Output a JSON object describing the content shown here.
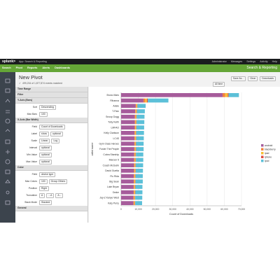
{
  "header": {
    "logo": "splunk>",
    "app": "App: Search & Reporting",
    "menu": [
      "Administrator",
      "Messages",
      "Settings",
      "Activity",
      "Help"
    ]
  },
  "nav": {
    "items": [
      "Search",
      "Pivot",
      "Reports",
      "Alerts",
      "Dashboards"
    ],
    "app_title": "Search & Reporting"
  },
  "pivot": {
    "title": "New Pivot",
    "status": "499,234 of 1,877,874 events matched",
    "buttons": [
      "Save As...",
      "Clear",
      "Downloads"
    ],
    "time": "All time"
  },
  "panel": {
    "sections": [
      {
        "title": "Time Range",
        "rows": []
      },
      {
        "title": "Filter",
        "rows": []
      },
      {
        "title": "Y-Axis (Bars)",
        "rows": [
          {
            "label": "Sort",
            "controls": [
              "Descending"
            ]
          },
          {
            "label": "Max Bars",
            "controls": [
              "100"
            ]
          }
        ]
      },
      {
        "title": "X-Axis (Bar Width)",
        "rows": [
          {
            "label": "Field",
            "controls": [
              "Count of Downloads"
            ]
          },
          {
            "label": "Label",
            "controls": [
              "show",
              "optional"
            ]
          },
          {
            "label": "Scale",
            "controls": [
              "Linear",
              "Log"
            ]
          },
          {
            "label": "Interval",
            "controls": [
              "optional"
            ]
          },
          {
            "label": "Min Value",
            "controls": [
              "optional"
            ]
          },
          {
            "label": "Max Value",
            "controls": [
              "optional"
            ]
          }
        ]
      },
      {
        "title": "Color",
        "rows": [
          {
            "label": "Field",
            "controls": [
              "device type"
            ]
          },
          {
            "label": "Max Colors",
            "controls": [
              "100",
              "Group Others"
            ]
          },
          {
            "label": "Position",
            "controls": [
              "Right"
            ]
          },
          {
            "label": "Truncation",
            "controls": [
              "A",
              "...A",
              "A..."
            ]
          },
          {
            "label": "Stack Mode",
            "controls": [
              "Stacked"
            ]
          }
        ]
      },
      {
        "title": "General",
        "rows": []
      }
    ]
  },
  "chart_data": {
    "type": "bar",
    "orientation": "horizontal",
    "stacked": true,
    "ylabel": "artist name",
    "xlabel": "Count of Downloads",
    "legend": "right",
    "categories": [
      "Bruno Mars",
      "Rihanna",
      "Adele",
      "T-Pain",
      "Snoop Dogg",
      "Toby Keith",
      "LMFAO",
      "Kelly Clarkson",
      "LC4S",
      "Gym Class Heroes",
      "Foster The People",
      "Cobra Starship",
      "Maroon 5",
      "Coach McGuirk",
      "David Guetta",
      "Flo Rida",
      "Big Sean",
      "Luke Bryan",
      "Drake",
      "Jay-Z Kanye West",
      "Katy Perry"
    ],
    "series": [
      {
        "name": "android",
        "color": "#a65c9b",
        "values": [
          59000,
          13000,
          8500,
          8200,
          8000,
          8000,
          7900,
          7800,
          7800,
          7700,
          7700,
          7600,
          7600,
          7500,
          7500,
          7400,
          7400,
          7300,
          7300,
          7200,
          7200
        ]
      },
      {
        "name": "blackberry",
        "color": "#f1813f",
        "values": [
          1500,
          1000,
          300,
          300,
          300,
          300,
          300,
          300,
          300,
          300,
          300,
          300,
          300,
          300,
          300,
          300,
          300,
          300,
          300,
          300,
          300
        ]
      },
      {
        "name": "ipad",
        "color": "#f8be34",
        "values": [
          1500,
          1000,
          500,
          500,
          500,
          500,
          500,
          500,
          500,
          500,
          500,
          500,
          500,
          500,
          500,
          500,
          500,
          500,
          500,
          500,
          500
        ]
      },
      {
        "name": "iphone",
        "color": "#dc4e41",
        "values": [
          500,
          500,
          200,
          200,
          200,
          200,
          200,
          200,
          200,
          200,
          200,
          200,
          200,
          200,
          200,
          200,
          200,
          200,
          200,
          200,
          200
        ]
      },
      {
        "name": "ipod",
        "color": "#5cc0d8",
        "values": [
          6000,
          12000,
          4800,
          4600,
          4600,
          4500,
          4500,
          4500,
          4400,
          4400,
          4400,
          4300,
          4300,
          4300,
          4200,
          4200,
          4200,
          4100,
          4100,
          4100,
          4000
        ]
      }
    ],
    "xlim": [
      0,
      70000
    ],
    "xticks": [
      0,
      {
        "value": 10000,
        "label": "10,000"
      },
      {
        "value": 20000,
        "label": "20,000"
      },
      {
        "value": 30000,
        "label": "30,000"
      },
      {
        "value": 40000,
        "label": "40,000"
      },
      {
        "value": 50000,
        "label": "50,000"
      },
      {
        "value": 60000,
        "label": "60,000"
      },
      {
        "value": 70000,
        "label": "70,000"
      }
    ],
    "grid": true
  }
}
